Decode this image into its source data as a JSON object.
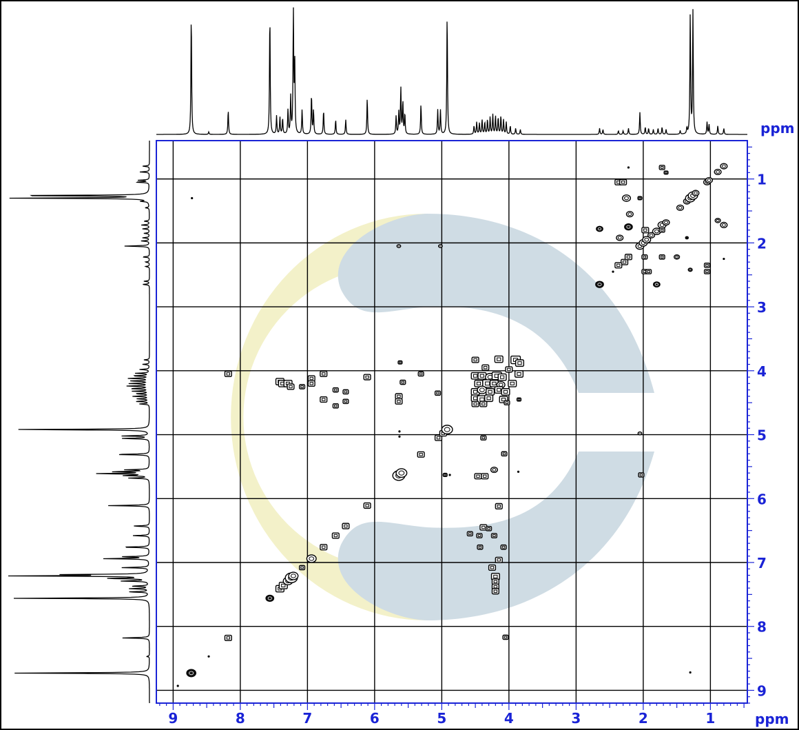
{
  "chart_data": {
    "type": "scatter",
    "subtype": "2D NMR COSY contour plot with 1D projections",
    "title": "",
    "xlabel": "ppm",
    "ylabel": "ppm",
    "x_axis": {
      "reversed": true,
      "range": [
        9.25,
        0.45
      ],
      "ticks": [
        9,
        8,
        7,
        6,
        5,
        4,
        3,
        2,
        1
      ]
    },
    "y_axis": {
      "reversed": false,
      "range": [
        0.4,
        9.2
      ],
      "ticks": [
        1,
        2,
        3,
        4,
        5,
        6,
        7,
        8,
        9
      ]
    },
    "grid": true,
    "axis_color": "#1a23d6",
    "watermark": {
      "type": "logo",
      "colors": [
        "#f3f1c9",
        "#cfdce4"
      ]
    },
    "projection_peaks": [
      {
        "ppm": 8.73,
        "h": 1.0
      },
      {
        "ppm": 8.47,
        "h": 0.02
      },
      {
        "ppm": 8.18,
        "h": 0.2
      },
      {
        "ppm": 7.56,
        "h": 1.0
      },
      {
        "ppm": 7.46,
        "h": 0.15
      },
      {
        "ppm": 7.41,
        "h": 0.14
      },
      {
        "ppm": 7.37,
        "h": 0.13
      },
      {
        "ppm": 7.29,
        "h": 0.2
      },
      {
        "ppm": 7.25,
        "h": 0.3
      },
      {
        "ppm": 7.21,
        "h": 1.0
      },
      {
        "ppm": 7.19,
        "h": 0.6
      },
      {
        "ppm": 7.08,
        "h": 0.2
      },
      {
        "ppm": 6.94,
        "h": 0.33
      },
      {
        "ppm": 6.91,
        "h": 0.2
      },
      {
        "ppm": 6.76,
        "h": 0.2
      },
      {
        "ppm": 6.58,
        "h": 0.12
      },
      {
        "ppm": 6.43,
        "h": 0.12
      },
      {
        "ppm": 6.11,
        "h": 0.3
      },
      {
        "ppm": 5.68,
        "h": 0.15
      },
      {
        "ppm": 5.64,
        "h": 0.18
      },
      {
        "ppm": 5.61,
        "h": 0.38
      },
      {
        "ppm": 5.58,
        "h": 0.27
      },
      {
        "ppm": 5.55,
        "h": 0.17
      },
      {
        "ppm": 5.31,
        "h": 0.25
      },
      {
        "ppm": 5.06,
        "h": 0.2
      },
      {
        "ppm": 5.02,
        "h": 0.2
      },
      {
        "ppm": 4.92,
        "h": 1.0
      },
      {
        "ppm": 4.52,
        "h": 0.07
      },
      {
        "ppm": 4.48,
        "h": 0.1
      },
      {
        "ppm": 4.44,
        "h": 0.09
      },
      {
        "ppm": 4.4,
        "h": 0.12
      },
      {
        "ppm": 4.36,
        "h": 0.1
      },
      {
        "ppm": 4.32,
        "h": 0.12
      },
      {
        "ppm": 4.28,
        "h": 0.14
      },
      {
        "ppm": 4.24,
        "h": 0.16
      },
      {
        "ppm": 4.2,
        "h": 0.15
      },
      {
        "ppm": 4.16,
        "h": 0.14
      },
      {
        "ppm": 4.12,
        "h": 0.15
      },
      {
        "ppm": 4.08,
        "h": 0.12
      },
      {
        "ppm": 4.04,
        "h": 0.1
      },
      {
        "ppm": 3.98,
        "h": 0.07
      },
      {
        "ppm": 3.9,
        "h": 0.05
      },
      {
        "ppm": 3.83,
        "h": 0.04
      },
      {
        "ppm": 2.65,
        "h": 0.05
      },
      {
        "ppm": 2.6,
        "h": 0.04
      },
      {
        "ppm": 2.37,
        "h": 0.03
      },
      {
        "ppm": 2.3,
        "h": 0.03
      },
      {
        "ppm": 2.22,
        "h": 0.05
      },
      {
        "ppm": 2.05,
        "h": 0.18
      },
      {
        "ppm": 1.97,
        "h": 0.06
      },
      {
        "ppm": 1.92,
        "h": 0.05
      },
      {
        "ppm": 1.85,
        "h": 0.04
      },
      {
        "ppm": 1.78,
        "h": 0.05
      },
      {
        "ppm": 1.72,
        "h": 0.06
      },
      {
        "ppm": 1.66,
        "h": 0.04
      },
      {
        "ppm": 1.45,
        "h": 0.03
      },
      {
        "ppm": 1.35,
        "h": 0.05
      },
      {
        "ppm": 1.3,
        "h": 1.0
      },
      {
        "ppm": 1.26,
        "h": 1.0
      },
      {
        "ppm": 1.05,
        "h": 0.1
      },
      {
        "ppm": 1.02,
        "h": 0.08
      },
      {
        "ppm": 0.89,
        "h": 0.07
      },
      {
        "ppm": 0.8,
        "h": 0.05
      }
    ],
    "cross_peaks": [
      {
        "x": 8.73,
        "y": 8.73,
        "w": 0.07,
        "k": "filled"
      },
      {
        "x": 8.18,
        "y": 8.18,
        "w": 0.05,
        "k": "box"
      },
      {
        "x": 8.47,
        "y": 8.47,
        "w": 0.02,
        "k": "dot"
      },
      {
        "x": 8.93,
        "y": 8.93,
        "w": 0.02,
        "k": "dot"
      },
      {
        "x": 7.56,
        "y": 7.56,
        "w": 0.06,
        "k": "filled"
      },
      {
        "x": 7.41,
        "y": 7.41,
        "w": 0.06,
        "k": "box"
      },
      {
        "x": 7.36,
        "y": 7.36,
        "w": 0.06,
        "k": "box"
      },
      {
        "x": 7.29,
        "y": 7.29,
        "w": 0.07,
        "k": "oval"
      },
      {
        "x": 7.24,
        "y": 7.24,
        "w": 0.09,
        "k": "oval"
      },
      {
        "x": 7.21,
        "y": 7.21,
        "w": 0.07,
        "k": "oval"
      },
      {
        "x": 7.08,
        "y": 7.08,
        "w": 0.04,
        "k": "box"
      },
      {
        "x": 6.94,
        "y": 6.94,
        "w": 0.07,
        "k": "oval"
      },
      {
        "x": 6.76,
        "y": 6.76,
        "w": 0.05,
        "k": "box"
      },
      {
        "x": 6.58,
        "y": 6.58,
        "w": 0.05,
        "k": "box"
      },
      {
        "x": 6.43,
        "y": 6.43,
        "w": 0.05,
        "k": "box"
      },
      {
        "x": 6.11,
        "y": 6.11,
        "w": 0.05,
        "k": "box"
      },
      {
        "x": 5.64,
        "y": 5.64,
        "w": 0.09,
        "k": "oval"
      },
      {
        "x": 5.6,
        "y": 5.6,
        "w": 0.08,
        "k": "oval"
      },
      {
        "x": 5.31,
        "y": 5.31,
        "w": 0.05,
        "k": "box"
      },
      {
        "x": 5.05,
        "y": 5.05,
        "w": 0.05,
        "k": "box"
      },
      {
        "x": 4.98,
        "y": 4.98,
        "w": 0.05,
        "k": "box"
      },
      {
        "x": 4.92,
        "y": 4.92,
        "w": 0.08,
        "k": "oval"
      },
      {
        "x": 8.18,
        "y": 4.05,
        "w": 0.05,
        "k": "box"
      },
      {
        "x": 8.72,
        "y": 1.3,
        "w": 0.02,
        "k": "dot"
      },
      {
        "x": 7.41,
        "y": 4.17,
        "w": 0.06,
        "k": "box"
      },
      {
        "x": 7.37,
        "y": 4.2,
        "w": 0.06,
        "k": "box"
      },
      {
        "x": 7.29,
        "y": 4.2,
        "w": 0.06,
        "k": "box"
      },
      {
        "x": 7.25,
        "y": 4.25,
        "w": 0.05,
        "k": "box"
      },
      {
        "x": 7.08,
        "y": 4.25,
        "w": 0.04,
        "k": "box"
      },
      {
        "x": 6.94,
        "y": 4.12,
        "w": 0.05,
        "k": "box"
      },
      {
        "x": 6.94,
        "y": 4.2,
        "w": 0.05,
        "k": "box"
      },
      {
        "x": 6.76,
        "y": 4.05,
        "w": 0.05,
        "k": "box"
      },
      {
        "x": 6.76,
        "y": 4.45,
        "w": 0.05,
        "k": "box"
      },
      {
        "x": 6.58,
        "y": 4.3,
        "w": 0.04,
        "k": "box"
      },
      {
        "x": 6.58,
        "y": 4.55,
        "w": 0.04,
        "k": "box"
      },
      {
        "x": 6.43,
        "y": 4.33,
        "w": 0.04,
        "k": "box"
      },
      {
        "x": 6.43,
        "y": 4.48,
        "w": 0.04,
        "k": "box"
      },
      {
        "x": 6.11,
        "y": 4.1,
        "w": 0.05,
        "k": "box"
      },
      {
        "x": 5.64,
        "y": 4.4,
        "w": 0.05,
        "k": "box"
      },
      {
        "x": 5.64,
        "y": 4.48,
        "w": 0.05,
        "k": "box"
      },
      {
        "x": 5.58,
        "y": 4.18,
        "w": 0.04,
        "k": "box"
      },
      {
        "x": 5.31,
        "y": 4.05,
        "w": 0.04,
        "k": "box"
      },
      {
        "x": 5.06,
        "y": 4.35,
        "w": 0.04,
        "k": "box"
      },
      {
        "x": 5.62,
        "y": 3.87,
        "w": 0.03,
        "k": "box"
      },
      {
        "x": 5.64,
        "y": 2.05,
        "w": 0.03,
        "k": "filled"
      },
      {
        "x": 5.02,
        "y": 2.05,
        "w": 0.03,
        "k": "filled"
      },
      {
        "x": 5.63,
        "y": 4.95,
        "w": 0.02,
        "k": "dot"
      },
      {
        "x": 5.63,
        "y": 5.03,
        "w": 0.02,
        "k": "dot"
      },
      {
        "x": 4.5,
        "y": 3.83,
        "w": 0.05,
        "k": "box"
      },
      {
        "x": 4.15,
        "y": 3.82,
        "w": 0.06,
        "k": "box"
      },
      {
        "x": 3.9,
        "y": 3.83,
        "w": 0.07,
        "k": "box"
      },
      {
        "x": 3.84,
        "y": 3.88,
        "w": 0.06,
        "k": "box"
      },
      {
        "x": 4.35,
        "y": 3.95,
        "w": 0.05,
        "k": "box"
      },
      {
        "x": 4.0,
        "y": 3.98,
        "w": 0.05,
        "k": "box"
      },
      {
        "x": 4.5,
        "y": 4.08,
        "w": 0.06,
        "k": "box"
      },
      {
        "x": 4.4,
        "y": 4.08,
        "w": 0.06,
        "k": "box"
      },
      {
        "x": 4.28,
        "y": 4.1,
        "w": 0.07,
        "k": "oval"
      },
      {
        "x": 4.18,
        "y": 4.08,
        "w": 0.07,
        "k": "box"
      },
      {
        "x": 4.1,
        "y": 4.1,
        "w": 0.06,
        "k": "box"
      },
      {
        "x": 3.85,
        "y": 4.05,
        "w": 0.06,
        "k": "box"
      },
      {
        "x": 4.45,
        "y": 4.2,
        "w": 0.06,
        "k": "box"
      },
      {
        "x": 4.32,
        "y": 4.2,
        "w": 0.07,
        "k": "box"
      },
      {
        "x": 4.22,
        "y": 4.2,
        "w": 0.06,
        "k": "box"
      },
      {
        "x": 4.12,
        "y": 4.22,
        "w": 0.06,
        "k": "oval"
      },
      {
        "x": 3.95,
        "y": 4.2,
        "w": 0.06,
        "k": "box"
      },
      {
        "x": 4.5,
        "y": 4.33,
        "w": 0.06,
        "k": "box"
      },
      {
        "x": 4.4,
        "y": 4.3,
        "w": 0.07,
        "k": "oval"
      },
      {
        "x": 4.28,
        "y": 4.33,
        "w": 0.06,
        "k": "box"
      },
      {
        "x": 4.15,
        "y": 4.3,
        "w": 0.06,
        "k": "box"
      },
      {
        "x": 4.05,
        "y": 4.33,
        "w": 0.06,
        "k": "box"
      },
      {
        "x": 4.5,
        "y": 4.43,
        "w": 0.06,
        "k": "box"
      },
      {
        "x": 4.4,
        "y": 4.45,
        "w": 0.07,
        "k": "box"
      },
      {
        "x": 4.3,
        "y": 4.43,
        "w": 0.06,
        "k": "box"
      },
      {
        "x": 4.08,
        "y": 4.45,
        "w": 0.06,
        "k": "box"
      },
      {
        "x": 4.5,
        "y": 4.52,
        "w": 0.05,
        "k": "box"
      },
      {
        "x": 4.38,
        "y": 4.52,
        "w": 0.05,
        "k": "box"
      },
      {
        "x": 4.03,
        "y": 4.5,
        "w": 0.04,
        "k": "box"
      },
      {
        "x": 3.85,
        "y": 4.45,
        "w": 0.03,
        "k": "box"
      },
      {
        "x": 4.38,
        "y": 5.05,
        "w": 0.04,
        "k": "box"
      },
      {
        "x": 4.07,
        "y": 5.3,
        "w": 0.04,
        "k": "box"
      },
      {
        "x": 4.22,
        "y": 5.55,
        "w": 0.05,
        "k": "oval"
      },
      {
        "x": 4.46,
        "y": 5.65,
        "w": 0.05,
        "k": "box"
      },
      {
        "x": 4.36,
        "y": 5.65,
        "w": 0.05,
        "k": "box"
      },
      {
        "x": 3.86,
        "y": 5.58,
        "w": 0.02,
        "k": "dot"
      },
      {
        "x": 4.15,
        "y": 6.12,
        "w": 0.05,
        "k": "box"
      },
      {
        "x": 4.58,
        "y": 6.55,
        "w": 0.04,
        "k": "box"
      },
      {
        "x": 4.38,
        "y": 6.45,
        "w": 0.05,
        "k": "box"
      },
      {
        "x": 4.3,
        "y": 6.47,
        "w": 0.04,
        "k": "box"
      },
      {
        "x": 4.44,
        "y": 6.58,
        "w": 0.04,
        "k": "box"
      },
      {
        "x": 4.22,
        "y": 6.58,
        "w": 0.04,
        "k": "box"
      },
      {
        "x": 4.43,
        "y": 6.76,
        "w": 0.04,
        "k": "box"
      },
      {
        "x": 4.08,
        "y": 6.76,
        "w": 0.04,
        "k": "box"
      },
      {
        "x": 4.15,
        "y": 6.96,
        "w": 0.05,
        "k": "box"
      },
      {
        "x": 4.25,
        "y": 7.08,
        "w": 0.05,
        "k": "box"
      },
      {
        "x": 4.2,
        "y": 7.22,
        "w": 0.06,
        "k": "box"
      },
      {
        "x": 4.2,
        "y": 7.3,
        "w": 0.05,
        "k": "box"
      },
      {
        "x": 4.2,
        "y": 7.38,
        "w": 0.05,
        "k": "box"
      },
      {
        "x": 4.2,
        "y": 7.45,
        "w": 0.05,
        "k": "box"
      },
      {
        "x": 4.05,
        "y": 8.17,
        "w": 0.04,
        "k": "box"
      },
      {
        "x": 4.95,
        "y": 5.63,
        "w": 0.03,
        "k": "box"
      },
      {
        "x": 4.88,
        "y": 5.63,
        "w": 0.02,
        "k": "dot"
      },
      {
        "x": 2.05,
        "y": 4.98,
        "w": 0.03,
        "k": "filled"
      },
      {
        "x": 2.03,
        "y": 5.63,
        "w": 0.04,
        "k": "box"
      },
      {
        "x": 1.3,
        "y": 8.72,
        "w": 0.02,
        "k": "dot"
      },
      {
        "x": 2.65,
        "y": 1.78,
        "w": 0.05,
        "k": "filled"
      },
      {
        "x": 2.65,
        "y": 2.65,
        "w": 0.06,
        "k": "filled"
      },
      {
        "x": 2.22,
        "y": 0.82,
        "w": 0.02,
        "k": "dot"
      },
      {
        "x": 2.37,
        "y": 1.05,
        "w": 0.05,
        "k": "box"
      },
      {
        "x": 2.3,
        "y": 1.05,
        "w": 0.05,
        "k": "box"
      },
      {
        "x": 2.25,
        "y": 1.3,
        "w": 0.06,
        "k": "oval"
      },
      {
        "x": 2.2,
        "y": 1.55,
        "w": 0.05,
        "k": "oval"
      },
      {
        "x": 2.22,
        "y": 1.75,
        "w": 0.06,
        "k": "filled"
      },
      {
        "x": 2.35,
        "y": 1.92,
        "w": 0.05,
        "k": "oval"
      },
      {
        "x": 2.28,
        "y": 2.3,
        "w": 0.05,
        "k": "box"
      },
      {
        "x": 2.22,
        "y": 2.22,
        "w": 0.05,
        "k": "box"
      },
      {
        "x": 2.37,
        "y": 2.35,
        "w": 0.05,
        "k": "box"
      },
      {
        "x": 2.05,
        "y": 1.3,
        "w": 0.03,
        "k": "box"
      },
      {
        "x": 1.97,
        "y": 1.8,
        "w": 0.05,
        "k": "box"
      },
      {
        "x": 2.05,
        "y": 2.05,
        "w": 0.06,
        "k": "oval"
      },
      {
        "x": 2.0,
        "y": 2.0,
        "w": 0.06,
        "k": "oval"
      },
      {
        "x": 1.95,
        "y": 1.95,
        "w": 0.06,
        "k": "oval"
      },
      {
        "x": 1.88,
        "y": 1.88,
        "w": 0.05,
        "k": "oval"
      },
      {
        "x": 1.8,
        "y": 1.82,
        "w": 0.06,
        "k": "oval"
      },
      {
        "x": 1.72,
        "y": 1.72,
        "w": 0.06,
        "k": "oval"
      },
      {
        "x": 1.66,
        "y": 1.68,
        "w": 0.05,
        "k": "oval"
      },
      {
        "x": 1.98,
        "y": 2.22,
        "w": 0.04,
        "k": "box"
      },
      {
        "x": 1.72,
        "y": 2.22,
        "w": 0.04,
        "k": "box"
      },
      {
        "x": 1.5,
        "y": 2.22,
        "w": 0.04,
        "k": "oval"
      },
      {
        "x": 1.98,
        "y": 2.45,
        "w": 0.04,
        "k": "box"
      },
      {
        "x": 1.92,
        "y": 2.45,
        "w": 0.04,
        "k": "box"
      },
      {
        "x": 1.8,
        "y": 2.65,
        "w": 0.05,
        "k": "filled"
      },
      {
        "x": 2.45,
        "y": 2.45,
        "w": 0.02,
        "k": "dot"
      },
      {
        "x": 1.72,
        "y": 0.82,
        "w": 0.04,
        "k": "box"
      },
      {
        "x": 1.66,
        "y": 0.9,
        "w": 0.03,
        "k": "box"
      },
      {
        "x": 1.72,
        "y": 1.8,
        "w": 0.04,
        "k": "box"
      },
      {
        "x": 1.35,
        "y": 1.92,
        "w": 0.02,
        "k": "box"
      },
      {
        "x": 1.45,
        "y": 1.45,
        "w": 0.05,
        "k": "oval"
      },
      {
        "x": 1.35,
        "y": 1.35,
        "w": 0.05,
        "k": "oval"
      },
      {
        "x": 1.3,
        "y": 1.3,
        "w": 0.07,
        "k": "oval"
      },
      {
        "x": 1.26,
        "y": 1.26,
        "w": 0.07,
        "k": "oval"
      },
      {
        "x": 1.22,
        "y": 1.22,
        "w": 0.05,
        "k": "oval"
      },
      {
        "x": 1.05,
        "y": 1.05,
        "w": 0.05,
        "k": "oval"
      },
      {
        "x": 1.02,
        "y": 1.02,
        "w": 0.05,
        "k": "oval"
      },
      {
        "x": 0.89,
        "y": 0.89,
        "w": 0.05,
        "k": "oval"
      },
      {
        "x": 0.8,
        "y": 0.8,
        "w": 0.05,
        "k": "oval"
      },
      {
        "x": 1.05,
        "y": 2.35,
        "w": 0.04,
        "k": "box"
      },
      {
        "x": 1.05,
        "y": 2.45,
        "w": 0.04,
        "k": "box"
      },
      {
        "x": 1.3,
        "y": 2.42,
        "w": 0.03,
        "k": "oval"
      },
      {
        "x": 0.89,
        "y": 1.65,
        "w": 0.04,
        "k": "oval"
      },
      {
        "x": 0.8,
        "y": 1.72,
        "w": 0.05,
        "k": "oval"
      },
      {
        "x": 0.8,
        "y": 2.25,
        "w": 0.02,
        "k": "dot"
      }
    ]
  },
  "axes": {
    "unit_top": "ppm",
    "unit_bottom": "ppm",
    "x_tick_labels": [
      "9",
      "8",
      "7",
      "6",
      "5",
      "4",
      "3",
      "2",
      "1"
    ],
    "y_tick_labels": [
      "1",
      "2",
      "3",
      "4",
      "5",
      "6",
      "7",
      "8",
      "9"
    ]
  }
}
